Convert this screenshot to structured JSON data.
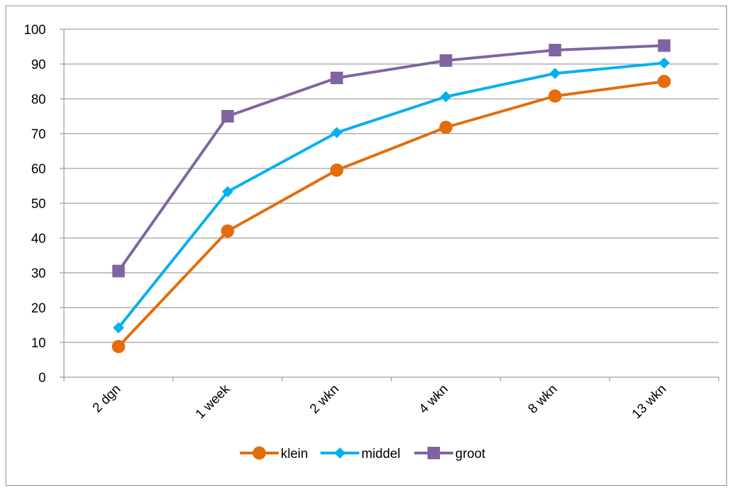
{
  "chart_data": {
    "type": "line",
    "categories": [
      "2 dgn",
      "1 week",
      "2 wkn",
      "4 wkn",
      "8 wkn",
      "13 wkn"
    ],
    "series": [
      {
        "name": "klein",
        "values": [
          8.8,
          42.0,
          59.5,
          71.8,
          80.8,
          85.0
        ],
        "color": "#E46C0A",
        "marker": "circle"
      },
      {
        "name": "middel",
        "values": [
          14.2,
          53.3,
          70.3,
          80.6,
          87.3,
          90.3
        ],
        "color": "#00B0F0",
        "marker": "diamond"
      },
      {
        "name": "groot",
        "values": [
          30.5,
          75.0,
          86.0,
          91.0,
          94.0,
          95.3
        ],
        "color": "#8064A2",
        "marker": "square"
      }
    ],
    "ylim": [
      0,
      100
    ],
    "yticks": [
      0,
      10,
      20,
      30,
      40,
      50,
      60,
      70,
      80,
      90,
      100
    ],
    "grid": true,
    "legend_position": "bottom",
    "title": "",
    "xlabel": "",
    "ylabel": ""
  }
}
